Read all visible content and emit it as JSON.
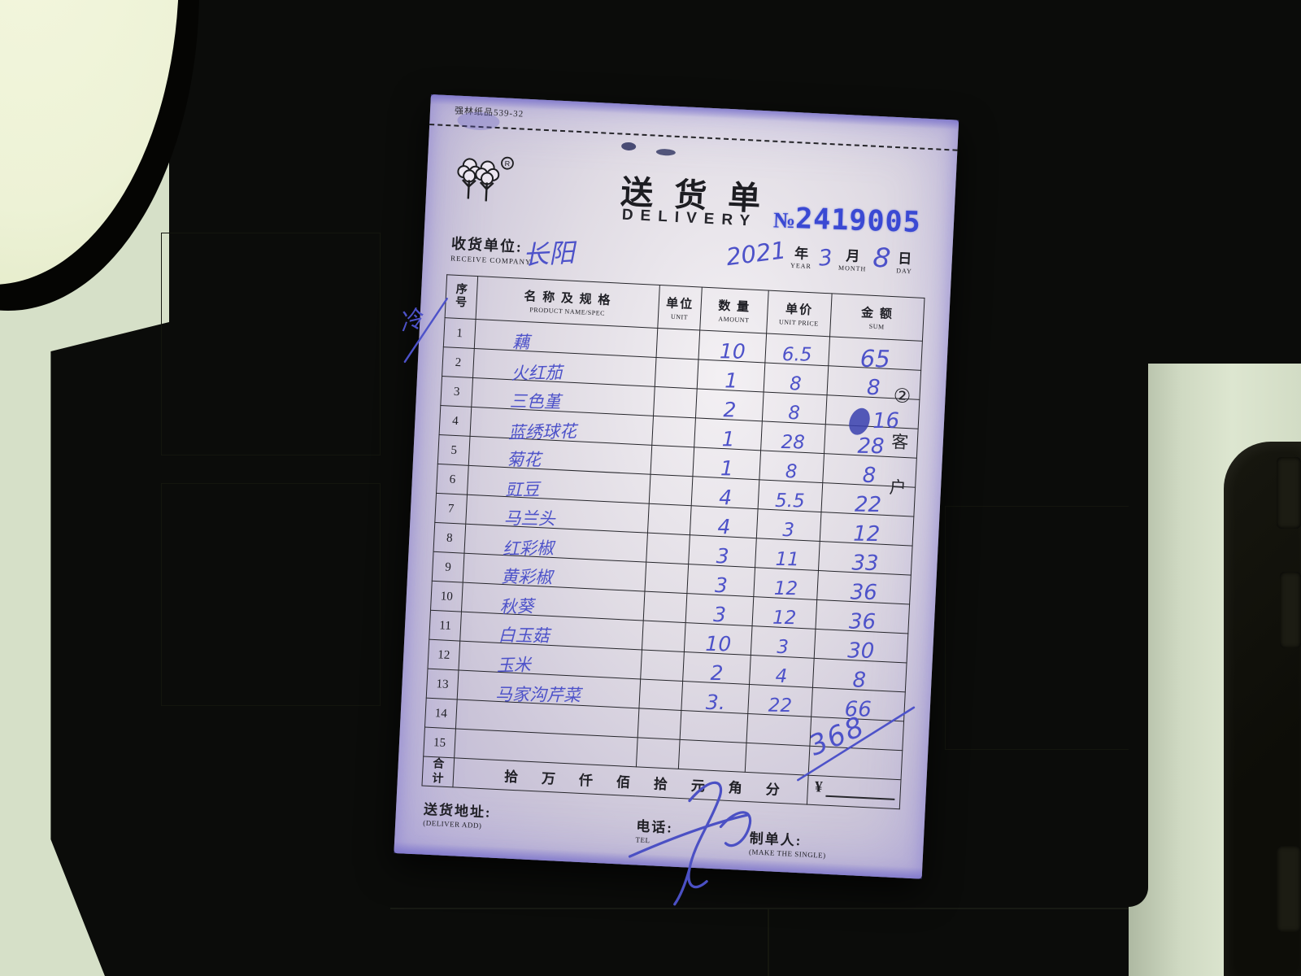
{
  "paper": {
    "print_code": "强林纸品539-32",
    "title_cn": "送货单",
    "title_en": "DELIVERY",
    "no_label": "№",
    "no_value": "2419005",
    "receive_label_cn": "收货单位:",
    "receive_label_en": "RECEIVE COMPANY",
    "receive_value_hw": "长阳",
    "date": {
      "year_hw": "2021",
      "year_cn": "年",
      "year_en": "YEAR",
      "month_hw": "3",
      "month_cn": "月",
      "month_en": "MONTH",
      "day_hw": "8",
      "day_cn": "日",
      "day_en": "DAY"
    },
    "copy_badge": "②",
    "copy_char_1": "客",
    "copy_char_2": "户",
    "margin_note_hw": "冷"
  },
  "table": {
    "header": {
      "no_line1": "序",
      "no_line2": "号",
      "name_cn": "名 称 及 规 格",
      "name_en": "PRODUCT NAME/SPEC",
      "unit_cn": "单位",
      "unit_en": "UNIT",
      "amount_cn": "数 量",
      "amount_en": "AMOUNT",
      "price_cn": "单价",
      "price_en": "UNIT PRICE",
      "sum_cn": "金 额",
      "sum_en": "SUM"
    },
    "rows": [
      {
        "no": "1",
        "name": "藕",
        "unit": "",
        "amount": "10",
        "price": "6.5",
        "sum": "65"
      },
      {
        "no": "2",
        "name": "火红茄",
        "unit": "",
        "amount": "1",
        "price": "8",
        "sum": "8"
      },
      {
        "no": "3",
        "name": "三色堇",
        "unit": "",
        "amount": "2",
        "price": "8",
        "sum": "16"
      },
      {
        "no": "4",
        "name": "蓝绣球花",
        "unit": "",
        "amount": "1",
        "price": "28",
        "sum": "28"
      },
      {
        "no": "5",
        "name": "菊花",
        "unit": "",
        "amount": "1",
        "price": "8",
        "sum": "8"
      },
      {
        "no": "6",
        "name": "豇豆",
        "unit": "",
        "amount": "4",
        "price": "5.5",
        "sum": "22"
      },
      {
        "no": "7",
        "name": "马兰头",
        "unit": "",
        "amount": "4",
        "price": "3",
        "sum": "12"
      },
      {
        "no": "8",
        "name": "红彩椒",
        "unit": "",
        "amount": "3",
        "price": "11",
        "sum": "33"
      },
      {
        "no": "9",
        "name": "黄彩椒",
        "unit": "",
        "amount": "3",
        "price": "12",
        "sum": "36"
      },
      {
        "no": "10",
        "name": "秋葵",
        "unit": "",
        "amount": "3",
        "price": "12",
        "sum": "36"
      },
      {
        "no": "11",
        "name": "白玉菇",
        "unit": "",
        "amount": "10",
        "price": "3",
        "sum": "30"
      },
      {
        "no": "12",
        "name": "玉米",
        "unit": "",
        "amount": "2",
        "price": "4",
        "sum": "8"
      },
      {
        "no": "13",
        "name": "马家沟芹菜",
        "unit": "",
        "amount": "3.",
        "price": "22",
        "sum": "66"
      },
      {
        "no": "14",
        "name": "",
        "unit": "",
        "amount": "",
        "price": "",
        "sum": ""
      },
      {
        "no": "15",
        "name": "",
        "unit": "",
        "amount": "",
        "price": "",
        "sum": ""
      }
    ],
    "total_hw": "368"
  },
  "total_row": {
    "label_line1": "合",
    "label_line2": "计",
    "amount_words": [
      "拾",
      "万",
      "仟",
      "佰",
      "拾",
      "元",
      "角",
      "分"
    ],
    "currency": "¥"
  },
  "footer": {
    "address_cn": "送货地址:",
    "address_en": "(DELIVER ADD)",
    "tel_cn": "电话:",
    "tel_en": "TEL",
    "maker_cn": "制单人:",
    "maker_en": "(MAKE THE SINGLE)"
  }
}
